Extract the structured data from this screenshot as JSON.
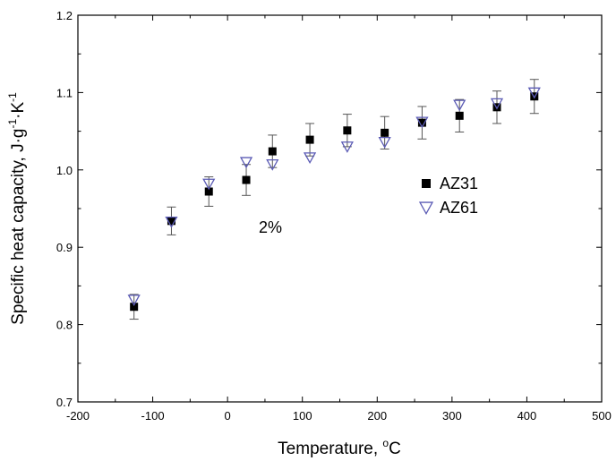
{
  "chart_data": {
    "type": "scatter",
    "title": "",
    "xlabel": {
      "main": "Temperature, ",
      "sup": "o",
      "unit": "C"
    },
    "ylabel": {
      "parts": [
        {
          "t": "Specific heat capacity, J"
        },
        {
          "t": "·"
        },
        {
          "t": "g"
        },
        {
          "t": "-1",
          "sup": true
        },
        {
          "t": "·K"
        },
        {
          "t": "-1",
          "sup": true
        }
      ]
    },
    "xlim": [
      -200,
      500
    ],
    "ylim": [
      0.7,
      1.2
    ],
    "x_ticks": [
      "-200",
      "-100",
      "0",
      "100",
      "200",
      "300",
      "400",
      "500"
    ],
    "y_ticks": [
      "0.7",
      "0.8",
      "0.9",
      "1.0",
      "1.1",
      "1.2"
    ],
    "grid": false,
    "legend_position": "right-middle",
    "annotation": "2%",
    "series": [
      {
        "name": "AZ31",
        "marker": "square",
        "color": "#000000",
        "x": [
          -125,
          -75,
          -25,
          25,
          60,
          110,
          160,
          210,
          260,
          310,
          360,
          410
        ],
        "y": [
          0.823,
          0.934,
          0.972,
          0.987,
          1.024,
          1.039,
          1.051,
          1.048,
          1.061,
          1.07,
          1.081,
          1.095
        ],
        "error": [
          0.016,
          0.018,
          0.019,
          0.02,
          0.021,
          0.021,
          0.021,
          0.021,
          0.021,
          0.021,
          0.021,
          0.022
        ]
      },
      {
        "name": "AZ61",
        "marker": "triangle-down",
        "color": "#5b5bb5",
        "x": [
          -125,
          -75,
          -25,
          25,
          60,
          110,
          160,
          210,
          260,
          310,
          360,
          410
        ],
        "y": [
          0.832,
          0.933,
          0.982,
          1.01,
          1.007,
          1.016,
          1.03,
          1.036,
          1.062,
          1.084,
          1.086,
          1.1
        ]
      }
    ]
  }
}
